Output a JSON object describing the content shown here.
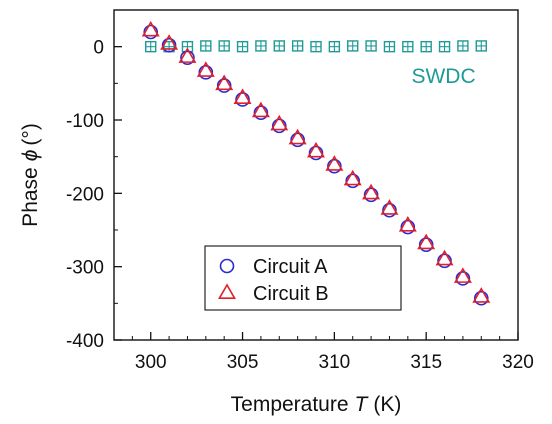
{
  "chart_data": {
    "type": "scatter",
    "title": "",
    "xlabel": "Temperature",
    "xlabel_symbol": "T",
    "xlabel_unit": "(K)",
    "ylabel": "Phase",
    "ylabel_symbol": "ϕ",
    "ylabel_unit": "(°)",
    "xlim": [
      298,
      320
    ],
    "ylim": [
      -400,
      50
    ],
    "x_ticks": [
      300,
      305,
      310,
      315,
      320
    ],
    "y_ticks": [
      0,
      -100,
      -200,
      -300,
      -400
    ],
    "grid": false,
    "legend_position": "lower-left",
    "series": [
      {
        "name": "Circuit A",
        "marker": "circle",
        "color": "#2a2ad0",
        "in_legend": true,
        "x": [
          300,
          301,
          302,
          303,
          304,
          305,
          306,
          307,
          308,
          309,
          310,
          311,
          312,
          313,
          314,
          315,
          316,
          317,
          318
        ],
        "y": [
          20,
          2,
          -15,
          -35,
          -53,
          -72,
          -90,
          -108,
          -127,
          -145,
          -163,
          -183,
          -202,
          -223,
          -246,
          -270,
          -292,
          -316,
          -343
        ]
      },
      {
        "name": "Circuit B",
        "marker": "triangle",
        "color": "#e0202a",
        "in_legend": true,
        "x": [
          300,
          301,
          302,
          303,
          304,
          305,
          306,
          307,
          308,
          309,
          310,
          311,
          312,
          313,
          314,
          315,
          316,
          317,
          318
        ],
        "y": [
          22,
          4,
          -14,
          -33,
          -51,
          -70,
          -88,
          -106,
          -125,
          -143,
          -161,
          -181,
          -200,
          -221,
          -244,
          -268,
          -290,
          -314,
          -341
        ]
      },
      {
        "name": "SWDC",
        "marker": "square-plus",
        "color": "#1f9a96",
        "in_legend": false,
        "x": [
          300,
          301,
          302,
          303,
          304,
          305,
          306,
          307,
          308,
          309,
          310,
          311,
          312,
          313,
          314,
          315,
          316,
          317,
          318
        ],
        "y": [
          0,
          0,
          0,
          1,
          1,
          0,
          1,
          1,
          1,
          0,
          0,
          1,
          1,
          0,
          0,
          0,
          0,
          1,
          1
        ]
      }
    ],
    "annotations": [
      {
        "text": "SWDC",
        "x": 314.2,
        "y": -40,
        "color": "#1f9a96"
      }
    ]
  }
}
